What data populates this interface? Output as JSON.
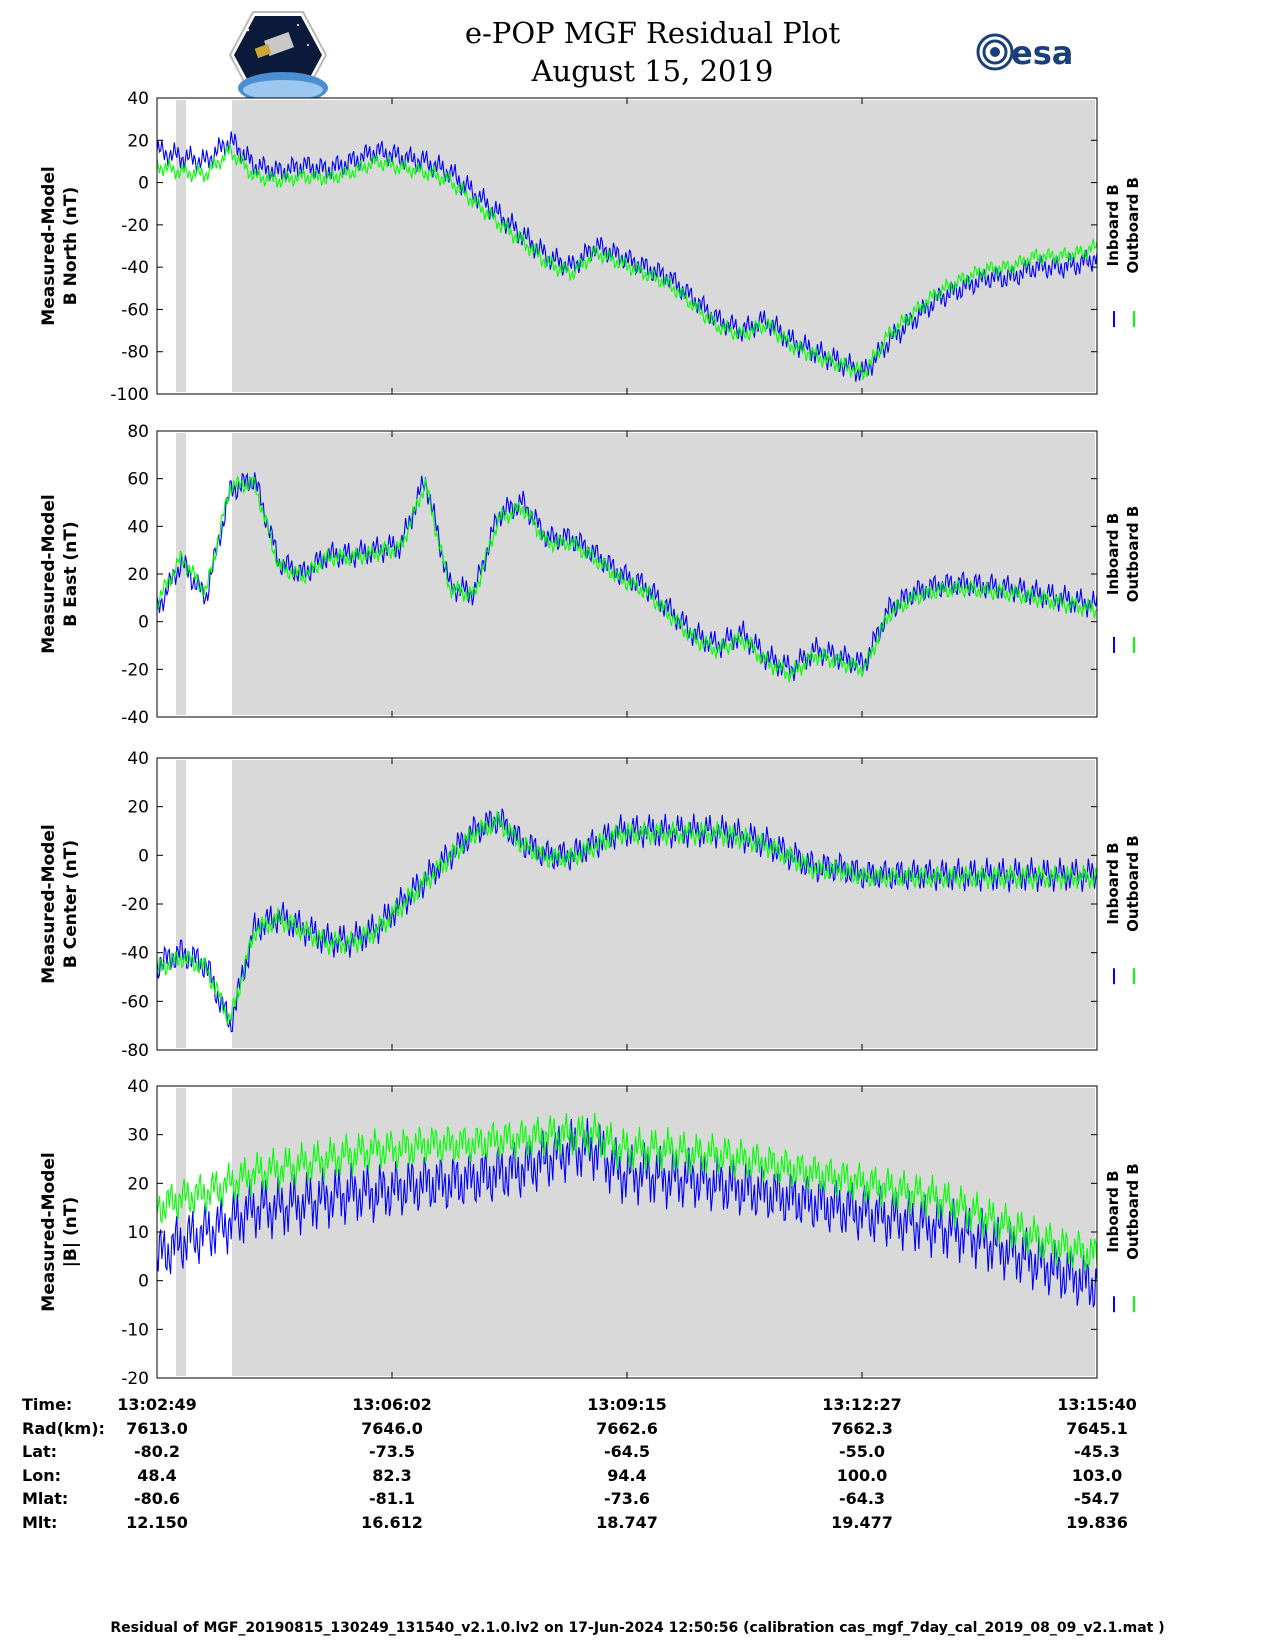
{
  "header": {
    "title": "e-POP MGF Residual Plot",
    "date": "August 15, 2019",
    "mission_logo": "CASSIOPE mission patch",
    "esa_logo": "esa"
  },
  "colors": {
    "inboard": "#0000ff",
    "outboard": "#00ff00",
    "shade": "#d9d9d9"
  },
  "chart_data": [
    {
      "type": "line",
      "ylabel": [
        "Measured-Model",
        "B North (nT)"
      ],
      "ylim": [
        -100,
        40
      ],
      "yticks": [
        -100,
        -80,
        -60,
        -40,
        -20,
        0,
        20,
        40
      ],
      "legend": [
        "Inboard B",
        "Outboard B"
      ],
      "legend_placement": "right",
      "x": [
        0,
        20,
        40,
        60,
        80,
        100,
        120,
        140,
        160,
        180,
        200,
        220,
        240,
        260,
        280,
        300,
        320,
        340,
        360,
        380,
        400,
        420,
        440,
        460,
        480,
        500,
        520,
        540,
        560,
        580,
        600,
        620,
        640,
        660,
        680,
        700,
        720,
        740,
        760,
        771
      ],
      "series": [
        {
          "name": "Inboard B",
          "values": [
            15,
            12,
            10,
            20,
            8,
            5,
            8,
            6,
            10,
            15,
            12,
            10,
            5,
            -5,
            -15,
            -25,
            -35,
            -40,
            -30,
            -35,
            -40,
            -45,
            -55,
            -65,
            -70,
            -65,
            -75,
            -80,
            -85,
            -90,
            -75,
            -65,
            -55,
            -50,
            -45,
            -45,
            -40,
            -40,
            -38,
            -35
          ]
        },
        {
          "name": "Outboard B",
          "values": [
            8,
            5,
            4,
            15,
            3,
            1,
            3,
            2,
            5,
            10,
            7,
            5,
            1,
            -9,
            -19,
            -28,
            -38,
            -43,
            -33,
            -38,
            -43,
            -48,
            -58,
            -68,
            -72,
            -67,
            -77,
            -82,
            -86,
            -90,
            -72,
            -62,
            -52,
            -46,
            -41,
            -40,
            -35,
            -35,
            -33,
            -30
          ]
        }
      ]
    },
    {
      "type": "line",
      "ylabel": [
        "Measured-Model",
        "B East (nT)"
      ],
      "ylim": [
        -40,
        80
      ],
      "yticks": [
        -40,
        -20,
        0,
        20,
        40,
        60,
        80
      ],
      "legend": [
        "Inboard B",
        "Outboard B"
      ],
      "legend_placement": "right",
      "x": [
        0,
        20,
        40,
        60,
        80,
        100,
        120,
        140,
        160,
        180,
        200,
        220,
        240,
        260,
        280,
        300,
        320,
        340,
        360,
        380,
        400,
        420,
        440,
        460,
        480,
        500,
        520,
        540,
        560,
        580,
        600,
        620,
        640,
        660,
        680,
        700,
        720,
        740,
        760,
        771
      ],
      "series": [
        {
          "name": "Inboard B",
          "values": [
            5,
            25,
            10,
            55,
            60,
            25,
            20,
            28,
            28,
            30,
            32,
            60,
            15,
            12,
            45,
            50,
            35,
            35,
            28,
            20,
            15,
            5,
            -5,
            -10,
            -5,
            -15,
            -20,
            -12,
            -15,
            -18,
            5,
            12,
            15,
            16,
            15,
            14,
            12,
            10,
            8,
            7
          ]
        },
        {
          "name": "Outboard B",
          "values": [
            8,
            27,
            12,
            57,
            58,
            23,
            19,
            27,
            27,
            29,
            31,
            58,
            14,
            11,
            43,
            48,
            33,
            33,
            26,
            18,
            13,
            3,
            -7,
            -12,
            -7,
            -17,
            -22,
            -14,
            -17,
            -20,
            3,
            10,
            13,
            14,
            13,
            12,
            10,
            8,
            6,
            5
          ]
        }
      ]
    },
    {
      "type": "line",
      "ylabel": [
        "Measured-Model",
        "B Center (nT)"
      ],
      "ylim": [
        -80,
        40
      ],
      "yticks": [
        -80,
        -60,
        -40,
        -20,
        0,
        20,
        40
      ],
      "legend": [
        "Inboard B",
        "Outboard B"
      ],
      "legend_placement": "right",
      "x": [
        0,
        20,
        40,
        60,
        80,
        100,
        120,
        140,
        160,
        180,
        200,
        220,
        240,
        260,
        280,
        300,
        320,
        340,
        360,
        380,
        400,
        420,
        440,
        460,
        480,
        500,
        520,
        540,
        560,
        580,
        600,
        620,
        640,
        660,
        680,
        700,
        720,
        740,
        760,
        771
      ],
      "series": [
        {
          "name": "Inboard B",
          "values": [
            -45,
            -40,
            -45,
            -70,
            -30,
            -25,
            -30,
            -35,
            -35,
            -30,
            -20,
            -10,
            0,
            10,
            15,
            5,
            0,
            0,
            5,
            10,
            10,
            10,
            10,
            10,
            8,
            5,
            0,
            -5,
            -5,
            -8,
            -8,
            -8,
            -8,
            -8,
            -8,
            -8,
            -8,
            -8,
            -8,
            -8
          ]
        },
        {
          "name": "Outboard B",
          "values": [
            -47,
            -42,
            -46,
            -68,
            -31,
            -26,
            -31,
            -36,
            -36,
            -31,
            -21,
            -11,
            -1,
            9,
            14,
            4,
            -1,
            -1,
            4,
            9,
            9,
            9,
            9,
            9,
            7,
            4,
            -1,
            -6,
            -6,
            -9,
            -9,
            -9,
            -9,
            -9,
            -9,
            -9,
            -9,
            -9,
            -9,
            -9
          ]
        }
      ]
    },
    {
      "type": "line",
      "ylabel": [
        "Measured-Model",
        "|B| (nT)"
      ],
      "ylim": [
        -20,
        40
      ],
      "yticks": [
        -20,
        -10,
        0,
        10,
        20,
        30,
        40
      ],
      "legend": [
        "Inboard B",
        "Outboard B"
      ],
      "legend_placement": "right",
      "x": [
        0,
        20,
        40,
        60,
        80,
        100,
        120,
        140,
        160,
        180,
        200,
        220,
        240,
        260,
        280,
        300,
        320,
        340,
        360,
        380,
        400,
        420,
        440,
        460,
        480,
        500,
        520,
        540,
        560,
        580,
        600,
        620,
        640,
        660,
        680,
        700,
        720,
        740,
        760,
        771
      ],
      "series": [
        {
          "name": "Inboard B",
          "values": [
            5,
            8,
            10,
            12,
            15,
            15,
            16,
            17,
            18,
            18,
            19,
            20,
            20,
            21,
            22,
            23,
            25,
            27,
            27,
            22,
            22,
            21,
            21,
            20,
            19,
            18,
            17,
            16,
            15,
            14,
            13,
            12,
            11,
            10,
            8,
            6,
            4,
            2,
            0,
            -1
          ]
        },
        {
          "name": "Outboard B",
          "values": [
            15,
            17,
            18,
            20,
            22,
            23,
            24,
            25,
            26,
            27,
            27,
            28,
            28,
            28,
            29,
            29,
            30,
            30,
            30,
            27,
            27,
            27,
            26,
            26,
            25,
            24,
            23,
            22,
            21,
            20,
            19,
            18,
            17,
            15,
            13,
            11,
            9,
            7,
            6,
            5
          ]
        }
      ]
    }
  ],
  "axis_x": {
    "tick_fraction": [
      0,
      0.25,
      0.5,
      0.75,
      1.0
    ]
  },
  "meta": {
    "labels": [
      "Time:",
      "Rad(km):",
      "Lat:",
      "Lon:",
      "Mlat:",
      "Mlt:"
    ],
    "columns": [
      [
        "13:02:49",
        "7613.0",
        "-80.2",
        "48.4",
        "-80.6",
        "12.150"
      ],
      [
        "13:06:02",
        "7646.0",
        "-73.5",
        "82.3",
        "-81.1",
        "16.612"
      ],
      [
        "13:09:15",
        "7662.6",
        "-64.5",
        "94.4",
        "-73.6",
        "18.747"
      ],
      [
        "13:12:27",
        "7662.3",
        "-55.0",
        "100.0",
        "-64.3",
        "19.477"
      ],
      [
        "13:15:40",
        "7645.1",
        "-45.3",
        "103.0",
        "-54.7",
        "19.836"
      ]
    ]
  },
  "footer": "Residual of MGF_20190815_130249_131540_v2.1.0.lv2 on 17-Jun-2024 12:50:56 (calibration cas_mgf_7day_cal_2019_08_09_v2.1.mat )"
}
